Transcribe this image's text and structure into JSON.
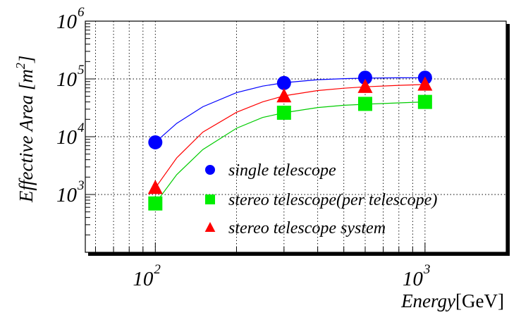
{
  "chart_data": {
    "type": "scatter",
    "xscale": "log",
    "yscale": "log",
    "xlim": [
      55,
      2000
    ],
    "ylim": [
      100,
      1000000
    ],
    "grid": true,
    "legend_placement": "lower-right",
    "xlabel": "Energy[GeV]",
    "ylabel": "Effective Area [m²]",
    "xlabel_parts": {
      "main": "Energy",
      "unit": "[GeV]"
    },
    "ylabel_parts": {
      "main": "Effective Area [m",
      "exp": "2",
      "close": "]"
    },
    "x_ticks": [
      {
        "value": 100,
        "base": "10",
        "exp": "2"
      },
      {
        "value": 1000,
        "base": "10",
        "exp": "3"
      }
    ],
    "y_ticks": [
      {
        "value": 1000,
        "base": "10",
        "exp": "3"
      },
      {
        "value": 10000,
        "base": "10",
        "exp": "4"
      },
      {
        "value": 100000,
        "base": "10",
        "exp": "5"
      },
      {
        "value": 1000000,
        "base": "10",
        "exp": "6"
      }
    ],
    "series": [
      {
        "name": "single telescope",
        "marker": "circle",
        "color": "#0000ff",
        "x": [
          100,
          300,
          600,
          1000
        ],
        "y": [
          8000,
          85000,
          105000,
          105000
        ],
        "fit_x": [
          100,
          120,
          150,
          200,
          250,
          300,
          400,
          500,
          600,
          800,
          1000
        ],
        "fit_y": [
          8000,
          17000,
          33000,
          58000,
          75000,
          86000,
          97000,
          101000,
          103000,
          104500,
          105000
        ]
      },
      {
        "name": "stereo telescope(per telescope)",
        "marker": "square",
        "color": "#00ee00",
        "x": [
          100,
          300,
          600,
          1000
        ],
        "y": [
          700,
          26000,
          37000,
          40000
        ],
        "fit_x": [
          100,
          120,
          150,
          200,
          250,
          300,
          400,
          500,
          600,
          800,
          1000
        ],
        "fit_y": [
          700,
          2200,
          6000,
          14000,
          21500,
          26000,
          32000,
          35000,
          36500,
          38500,
          40000
        ]
      },
      {
        "name": "stereo telescope system",
        "marker": "triangle",
        "color": "#ff0000",
        "x": [
          100,
          300,
          600,
          1000
        ],
        "y": [
          1300,
          50000,
          73000,
          80000
        ],
        "fit_x": [
          100,
          120,
          150,
          200,
          250,
          300,
          400,
          500,
          600,
          800,
          1000
        ],
        "fit_y": [
          1300,
          4300,
          12000,
          26500,
          40000,
          51000,
          63000,
          69000,
          73000,
          77500,
          80000
        ]
      }
    ]
  }
}
